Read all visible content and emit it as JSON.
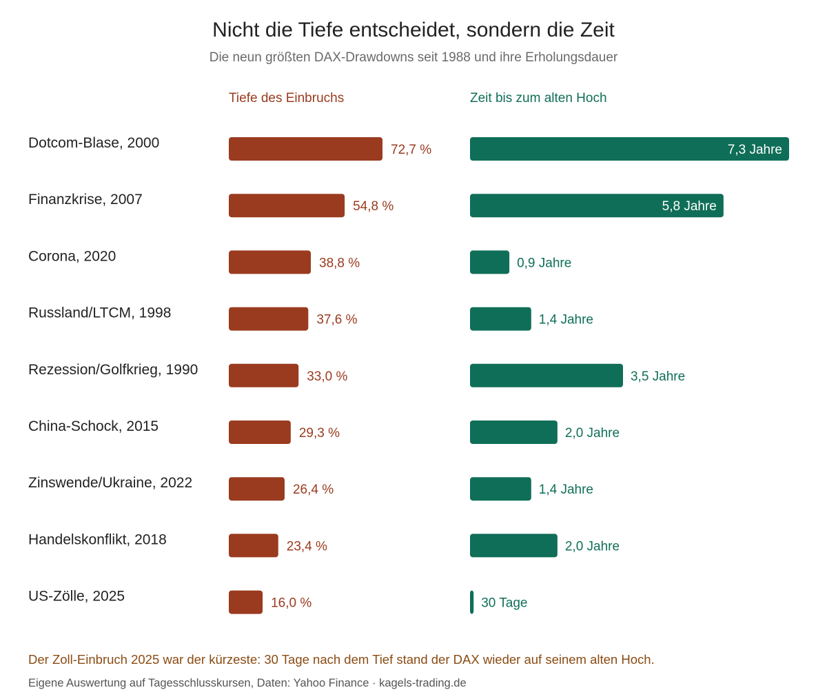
{
  "chart_data": {
    "type": "bar",
    "title": "Nicht die Tiefe entscheidet, sondern die Zeit",
    "subtitle": "Die neun größten DAX-Drawdowns seit 1988 und ihre Erholungsdauer",
    "categories": [
      "Dotcom-Blase, 2000",
      "Finanzkrise, 2007",
      "Corona, 2020",
      "Russland/LTCM, 1998",
      "Rezession/Golfkrieg, 1990",
      "China-Schock, 2015",
      "Zinswende/Ukraine, 2022",
      "Handelskonflikt, 2018",
      "US-Zölle, 2025"
    ],
    "series": [
      {
        "name": "Tiefe des Einbruchs",
        "unit": "%",
        "color": "#9a3b1f",
        "values": [
          72.7,
          54.8,
          38.8,
          37.6,
          33.0,
          29.3,
          26.4,
          23.4,
          16.0
        ],
        "labels": [
          "72,7 %",
          "54,8 %",
          "38,8 %",
          "37,6 %",
          "33,0 %",
          "29,3 %",
          "26,4 %",
          "23,4 %",
          "16,0 %"
        ]
      },
      {
        "name": "Zeit bis zum alten Hoch",
        "unit": "Jahre",
        "color": "#0f6e57",
        "values": [
          7.3,
          5.8,
          0.9,
          1.4,
          3.5,
          2.0,
          1.4,
          2.0,
          0.082
        ],
        "labels": [
          "7,3 Jahre",
          "5,8 Jahre",
          "0,9 Jahre",
          "1,4 Jahre",
          "3,5 Jahre",
          "2,0 Jahre",
          "1,4 Jahre",
          "2,0 Jahre",
          "30 Tage"
        ]
      }
    ],
    "annotations": [
      "Der Zoll-Einbruch 2025 war der kürzeste: 30 Tage nach dem Tief stand der DAX wieder auf seinem alten Hoch.",
      "Eigene Auswertung auf Tagesschlusskursen, Daten: Yahoo Finance · kagels-trading.de"
    ],
    "grid": false,
    "legend": "column headers above each panel"
  },
  "colors": {
    "footnote": "#8a4b12",
    "title": "#222222",
    "subtitle": "#6a6a6a"
  }
}
